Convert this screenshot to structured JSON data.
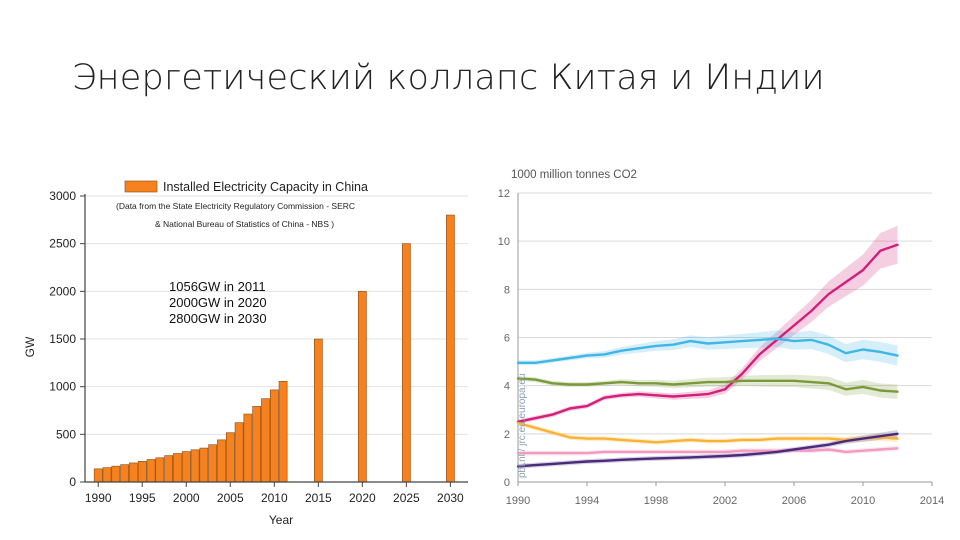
{
  "slide": {
    "title": "Энергетический коллапс Китая и Индии"
  },
  "chart_data": [
    {
      "type": "bar",
      "legend": "Installed Electricity Capacity in China",
      "subtitle_lines": [
        "(Data from the State Electricity Regulatory Commission - SERC",
        "& National Bureau of Statistics of China - NBS )"
      ],
      "annotation_lines": [
        "1056GW in 2011",
        "2000GW in 2020",
        "2800GW in 2030"
      ],
      "xlabel": "Year",
      "ylabel": "GW",
      "ylim": [
        0,
        3000
      ],
      "yticks": [
        0,
        500,
        1000,
        1500,
        2000,
        2500,
        3000
      ],
      "xticks": [
        1990,
        1995,
        2000,
        2005,
        2010,
        2015,
        2020,
        2025,
        2030
      ],
      "bar_color": "#f5821f",
      "x": [
        1990,
        1991,
        1992,
        1993,
        1994,
        1995,
        1996,
        1997,
        1998,
        1999,
        2000,
        2001,
        2002,
        2003,
        2004,
        2005,
        2006,
        2007,
        2008,
        2009,
        2010,
        2011,
        2015,
        2020,
        2025,
        2030
      ],
      "values": [
        138,
        151,
        166,
        182,
        200,
        217,
        236,
        254,
        277,
        299,
        319,
        338,
        356,
        391,
        442,
        517,
        622,
        713,
        793,
        874,
        966,
        1056,
        1500,
        2000,
        2500,
        2800
      ]
    },
    {
      "type": "line",
      "ylabel": "1000 million tonnes CO2",
      "watermark": "pbl.nl / jrc.eu.europa.eu",
      "xlim": [
        1990,
        2014
      ],
      "ylim": [
        0,
        12
      ],
      "xticks": [
        1990,
        1994,
        1998,
        2002,
        2006,
        2010,
        2014
      ],
      "yticks": [
        0,
        2,
        4,
        6,
        8,
        10,
        12
      ],
      "x": [
        1990,
        1991,
        1992,
        1993,
        1994,
        1995,
        1996,
        1997,
        1998,
        1999,
        2000,
        2001,
        2002,
        2003,
        2004,
        2005,
        2006,
        2007,
        2008,
        2009,
        2010,
        2011,
        2012
      ],
      "series": [
        {
          "color": "#d11f7a",
          "values": [
            2.5,
            2.65,
            2.8,
            3.05,
            3.15,
            3.5,
            3.6,
            3.65,
            3.6,
            3.55,
            3.6,
            3.65,
            3.85,
            4.5,
            5.3,
            5.9,
            6.5,
            7.1,
            7.8,
            8.3,
            8.8,
            9.6,
            9.85
          ]
        },
        {
          "color": "#3fb6e6",
          "values": [
            4.95,
            4.95,
            5.05,
            5.15,
            5.25,
            5.3,
            5.45,
            5.55,
            5.65,
            5.7,
            5.85,
            5.75,
            5.8,
            5.85,
            5.9,
            5.95,
            5.85,
            5.9,
            5.7,
            5.35,
            5.5,
            5.4,
            5.25
          ]
        },
        {
          "color": "#7a9a3a",
          "values": [
            4.3,
            4.25,
            4.1,
            4.05,
            4.05,
            4.1,
            4.15,
            4.1,
            4.1,
            4.05,
            4.1,
            4.15,
            4.15,
            4.2,
            4.2,
            4.2,
            4.2,
            4.15,
            4.1,
            3.85,
            3.95,
            3.8,
            3.75
          ]
        },
        {
          "color": "#f9b233",
          "values": [
            2.45,
            2.25,
            2.05,
            1.85,
            1.8,
            1.8,
            1.75,
            1.7,
            1.65,
            1.7,
            1.75,
            1.7,
            1.7,
            1.75,
            1.75,
            1.8,
            1.8,
            1.8,
            1.8,
            1.75,
            1.8,
            1.85,
            1.8
          ]
        },
        {
          "color": "#f29bc0",
          "values": [
            1.2,
            1.2,
            1.2,
            1.2,
            1.2,
            1.25,
            1.25,
            1.25,
            1.25,
            1.25,
            1.25,
            1.25,
            1.25,
            1.3,
            1.3,
            1.3,
            1.3,
            1.3,
            1.35,
            1.25,
            1.3,
            1.35,
            1.4
          ]
        },
        {
          "color": "#4a2a7a",
          "values": [
            0.65,
            0.7,
            0.75,
            0.8,
            0.85,
            0.88,
            0.92,
            0.95,
            0.98,
            1.0,
            1.02,
            1.05,
            1.08,
            1.12,
            1.18,
            1.25,
            1.35,
            1.45,
            1.55,
            1.7,
            1.8,
            1.9,
            2.0
          ]
        }
      ]
    }
  ]
}
